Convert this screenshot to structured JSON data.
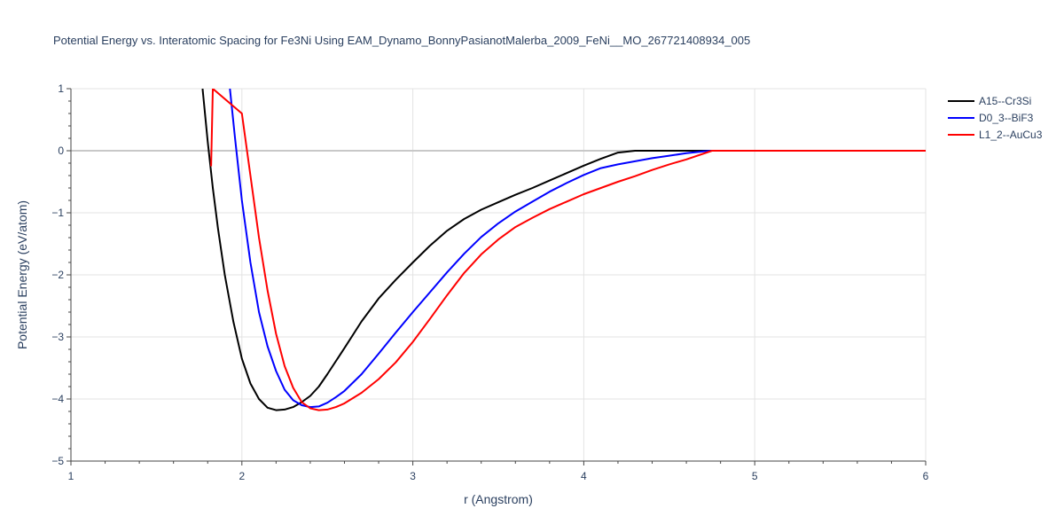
{
  "chart_data": {
    "type": "line",
    "title": "Potential Energy vs. Interatomic Spacing for Fe3Ni Using EAM_Dynamo_BonnyPasianotMalerba_2009_FeNi__MO_267721408934_005",
    "xlabel": "r (Angstrom)",
    "ylabel": "Potential Energy (eV/atom)",
    "xlim": [
      1,
      6
    ],
    "ylim": [
      -5,
      1
    ],
    "xticks": [
      1,
      2,
      3,
      4,
      5,
      6
    ],
    "xtick_labels": [
      "1",
      "2",
      "3",
      "4",
      "5",
      "6"
    ],
    "yticks": [
      1,
      0,
      -1,
      -2,
      -3,
      -4,
      -5
    ],
    "ytick_labels": [
      "1",
      "0",
      "−1",
      "−2",
      "−3",
      "−4",
      "−5"
    ],
    "grid": true,
    "legend_position": "top-right",
    "series": [
      {
        "name": "A15--Cr3Si",
        "color": "#000000",
        "x": [
          1.77,
          1.8,
          1.83,
          1.86,
          1.9,
          1.95,
          2.0,
          2.05,
          2.1,
          2.15,
          2.2,
          2.25,
          2.3,
          2.35,
          2.4,
          2.45,
          2.5,
          2.6,
          2.7,
          2.8,
          2.9,
          3.0,
          3.1,
          3.2,
          3.3,
          3.4,
          3.5,
          3.6,
          3.7,
          3.8,
          3.9,
          4.0,
          4.1,
          4.2,
          4.3,
          4.4,
          4.6,
          5.0,
          5.5,
          6.0
        ],
        "y": [
          1.0,
          0.15,
          -0.6,
          -1.25,
          -2.0,
          -2.75,
          -3.35,
          -3.75,
          -4.0,
          -4.14,
          -4.18,
          -4.17,
          -4.13,
          -4.05,
          -3.95,
          -3.8,
          -3.6,
          -3.18,
          -2.75,
          -2.38,
          -2.08,
          -1.8,
          -1.53,
          -1.29,
          -1.1,
          -0.95,
          -0.83,
          -0.71,
          -0.6,
          -0.48,
          -0.36,
          -0.24,
          -0.13,
          -0.03,
          0.0,
          0.0,
          0.0,
          0.0,
          0.0,
          0.0
        ]
      },
      {
        "name": "D0_3--BiF3",
        "color": "#0000ff",
        "x": [
          1.93,
          1.96,
          2.0,
          2.05,
          2.1,
          2.15,
          2.2,
          2.25,
          2.3,
          2.35,
          2.4,
          2.45,
          2.5,
          2.55,
          2.6,
          2.7,
          2.8,
          2.9,
          3.0,
          3.1,
          3.2,
          3.3,
          3.4,
          3.5,
          3.6,
          3.7,
          3.8,
          3.9,
          4.0,
          4.1,
          4.2,
          4.3,
          4.4,
          4.5,
          4.6,
          4.7,
          4.75,
          5.0,
          5.5,
          6.0
        ],
        "y": [
          1.0,
          0.2,
          -0.8,
          -1.8,
          -2.6,
          -3.15,
          -3.55,
          -3.85,
          -4.02,
          -4.1,
          -4.13,
          -4.12,
          -4.06,
          -3.97,
          -3.87,
          -3.6,
          -3.27,
          -2.93,
          -2.6,
          -2.28,
          -1.96,
          -1.66,
          -1.39,
          -1.17,
          -0.98,
          -0.82,
          -0.66,
          -0.52,
          -0.39,
          -0.28,
          -0.22,
          -0.17,
          -0.12,
          -0.08,
          -0.04,
          -0.01,
          0.0,
          0.0,
          0.0,
          0.0
        ]
      },
      {
        "name": "L1_2--AuCu3",
        "color": "#ff0000",
        "x": [
          1.82,
          1.83,
          1.83,
          2.0,
          2.05,
          2.1,
          2.15,
          2.2,
          2.25,
          2.3,
          2.35,
          2.4,
          2.45,
          2.5,
          2.55,
          2.6,
          2.7,
          2.8,
          2.9,
          3.0,
          3.1,
          3.2,
          3.3,
          3.4,
          3.5,
          3.6,
          3.7,
          3.8,
          3.9,
          4.0,
          4.1,
          4.2,
          4.3,
          4.4,
          4.5,
          4.6,
          4.75,
          5.0,
          5.5,
          6.0
        ],
        "y": [
          -0.25,
          1.0,
          1.0,
          0.6,
          -0.4,
          -1.4,
          -2.25,
          -2.95,
          -3.47,
          -3.82,
          -4.05,
          -4.15,
          -4.18,
          -4.17,
          -4.13,
          -4.07,
          -3.9,
          -3.68,
          -3.41,
          -3.08,
          -2.71,
          -2.33,
          -1.97,
          -1.67,
          -1.43,
          -1.23,
          -1.08,
          -0.94,
          -0.82,
          -0.7,
          -0.6,
          -0.5,
          -0.41,
          -0.31,
          -0.22,
          -0.14,
          0.0,
          0.0,
          0.0,
          0.0
        ]
      }
    ]
  }
}
